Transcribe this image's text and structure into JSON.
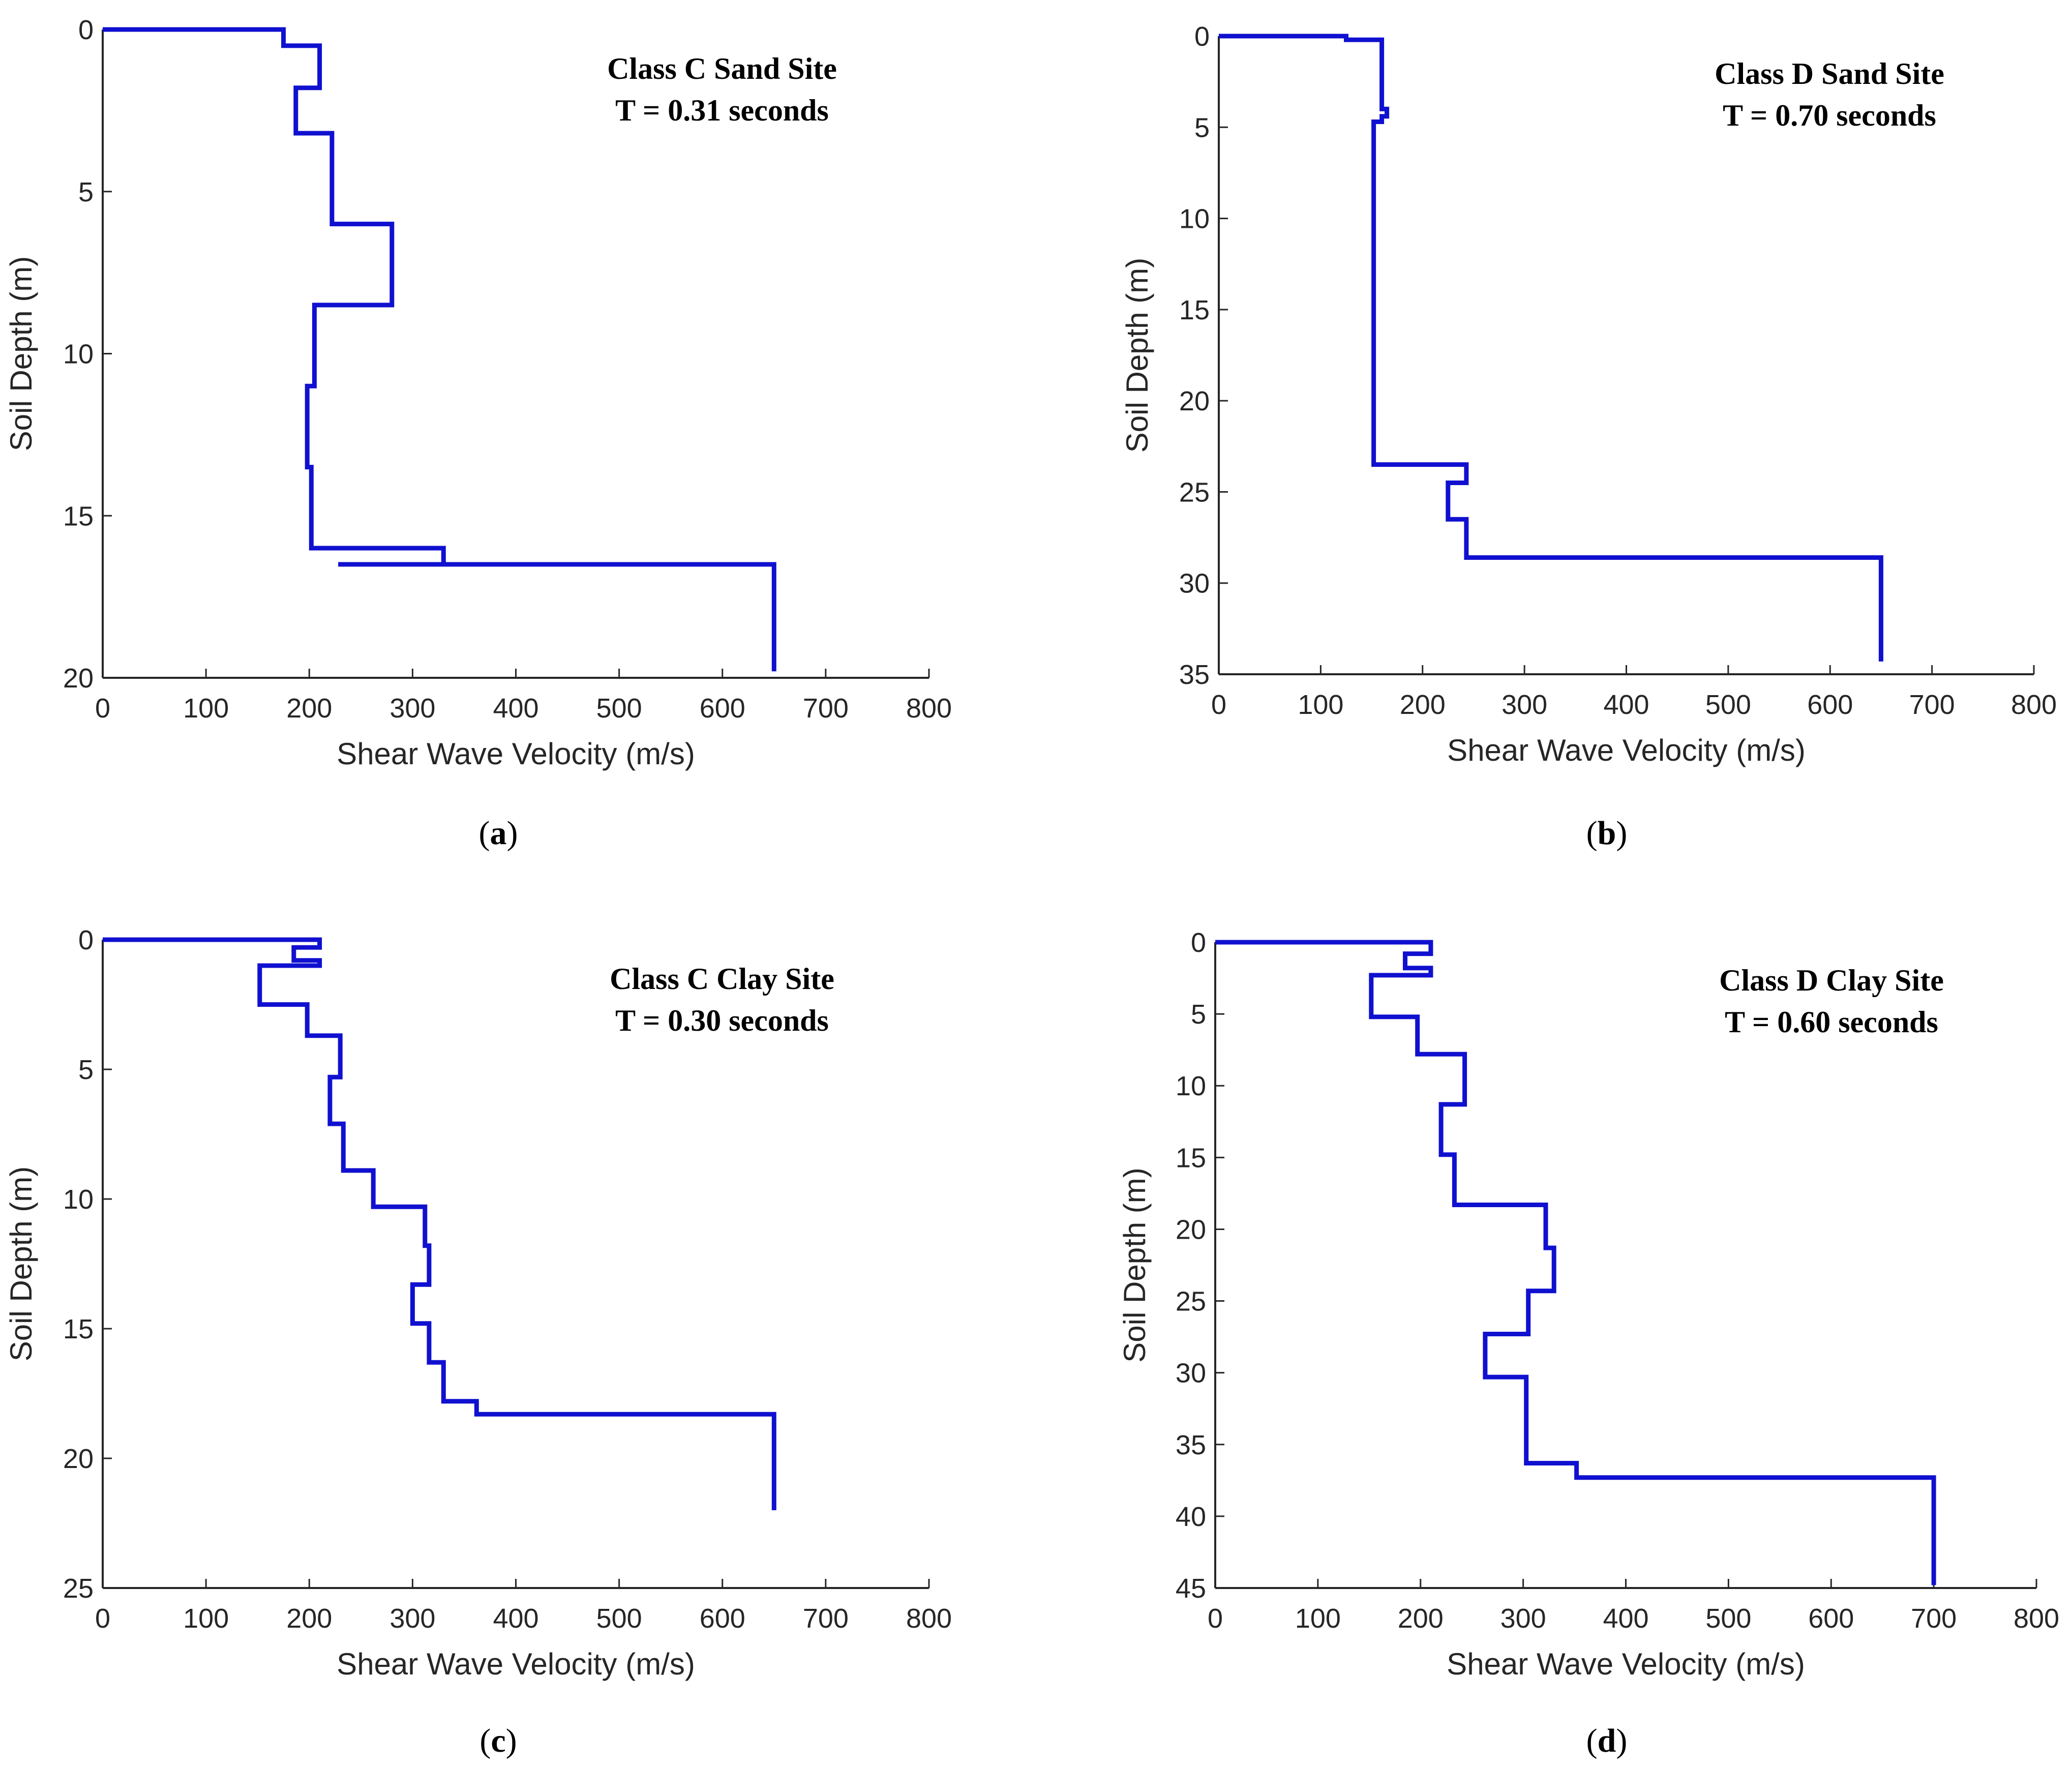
{
  "style": {
    "series_color": "#1010d0",
    "axis_color": "#262626"
  },
  "chart_data": [
    {
      "type": "line",
      "caption_letter": "a",
      "annotation": [
        "Class C Sand Site",
        "T = 0.31 seconds"
      ],
      "xlabel": "Shear Wave Velocity (m/s)",
      "ylabel": "Soil Depth (m)",
      "xlim": [
        0,
        800
      ],
      "ylim": [
        0,
        20
      ],
      "y_reversed": true,
      "x_ticks": [
        "0",
        "100",
        "200",
        "300",
        "400",
        "500",
        "600",
        "700",
        "800"
      ],
      "y_ticks": [
        "0",
        "5",
        "10",
        "15",
        "20"
      ],
      "grid": false,
      "series": [
        {
          "points": [
            [
              0,
              0
            ],
            [
              175,
              0
            ],
            [
              175,
              0.5
            ],
            [
              210,
              0.5
            ],
            [
              210,
              1.8
            ],
            [
              187,
              1.8
            ],
            [
              187,
              3.2
            ],
            [
              222,
              3.2
            ],
            [
              222,
              6
            ],
            [
              280,
              6
            ],
            [
              280,
              8.5
            ],
            [
              205,
              8.5
            ],
            [
              205,
              11
            ],
            [
              198,
              11
            ],
            [
              198,
              13.5
            ],
            [
              202,
              13.5
            ],
            [
              202,
              16
            ],
            [
              330,
              16
            ],
            [
              330,
              16.5
            ],
            [
              228,
              16.5
            ],
            [
              650,
              16.5
            ],
            [
              650,
              19.8
            ]
          ]
        }
      ]
    },
    {
      "type": "line",
      "caption_letter": "b",
      "annotation": [
        "Class D Sand Site",
        "T = 0.70 seconds"
      ],
      "xlabel": "Shear Wave Velocity (m/s)",
      "ylabel": "Soil Depth (m)",
      "xlim": [
        0,
        800
      ],
      "ylim": [
        0,
        35
      ],
      "y_reversed": true,
      "x_ticks": [
        "0",
        "100",
        "200",
        "300",
        "400",
        "500",
        "600",
        "700",
        "800"
      ],
      "y_ticks": [
        "0",
        "5",
        "10",
        "15",
        "20",
        "25",
        "30",
        "35"
      ],
      "grid": false,
      "series": [
        {
          "points": [
            [
              0,
              0
            ],
            [
              125,
              0
            ],
            [
              125,
              0.2
            ],
            [
              160,
              0.2
            ],
            [
              160,
              4
            ],
            [
              165,
              4
            ],
            [
              165,
              4.4
            ],
            [
              160,
              4.4
            ],
            [
              160,
              4.7
            ],
            [
              152,
              4.7
            ],
            [
              152,
              23.5
            ],
            [
              243,
              23.5
            ],
            [
              243,
              24.5
            ],
            [
              225,
              24.5
            ],
            [
              225,
              26.5
            ],
            [
              243,
              26.5
            ],
            [
              243,
              28.6
            ],
            [
              650,
              28.6
            ],
            [
              650,
              34.3
            ]
          ]
        }
      ]
    },
    {
      "type": "line",
      "caption_letter": "c",
      "annotation": [
        "Class C Clay Site",
        "T = 0.30 seconds"
      ],
      "xlabel": "Shear Wave Velocity (m/s)",
      "ylabel": "Soil Depth (m)",
      "xlim": [
        0,
        800
      ],
      "ylim": [
        0,
        25
      ],
      "y_reversed": true,
      "x_ticks": [
        "0",
        "100",
        "200",
        "300",
        "400",
        "500",
        "600",
        "700",
        "800"
      ],
      "y_ticks": [
        "0",
        "5",
        "10",
        "15",
        "20",
        "25"
      ],
      "grid": false,
      "series": [
        {
          "points": [
            [
              0,
              0
            ],
            [
              210,
              0
            ],
            [
              210,
              0.3
            ],
            [
              185,
              0.3
            ],
            [
              185,
              0.8
            ],
            [
              210,
              0.8
            ],
            [
              210,
              1
            ],
            [
              152,
              1
            ],
            [
              152,
              2.5
            ],
            [
              198,
              2.5
            ],
            [
              198,
              3.7
            ],
            [
              230,
              3.7
            ],
            [
              230,
              5.3
            ],
            [
              220,
              5.3
            ],
            [
              220,
              7.1
            ],
            [
              233,
              7.1
            ],
            [
              233,
              8.9
            ],
            [
              262,
              8.9
            ],
            [
              262,
              10.3
            ],
            [
              312,
              10.3
            ],
            [
              312,
              11.8
            ],
            [
              316,
              11.8
            ],
            [
              316,
              13.3
            ],
            [
              300,
              13.3
            ],
            [
              300,
              14.8
            ],
            [
              316,
              14.8
            ],
            [
              316,
              16.3
            ],
            [
              330,
              16.3
            ],
            [
              330,
              17.8
            ],
            [
              362,
              17.8
            ],
            [
              362,
              18.3
            ],
            [
              650,
              18.3
            ],
            [
              650,
              22
            ]
          ]
        }
      ]
    },
    {
      "type": "line",
      "caption_letter": "d",
      "annotation": [
        "Class D Clay Site",
        "T = 0.60 seconds"
      ],
      "xlabel": "Shear Wave Velocity (m/s)",
      "ylabel": "Soil Depth (m)",
      "xlim": [
        0,
        800
      ],
      "ylim": [
        0,
        45
      ],
      "y_reversed": true,
      "x_ticks": [
        "0",
        "100",
        "200",
        "300",
        "400",
        "500",
        "600",
        "700",
        "800"
      ],
      "y_ticks": [
        "0",
        "5",
        "10",
        "15",
        "20",
        "25",
        "30",
        "35",
        "40",
        "45"
      ],
      "grid": false,
      "series": [
        {
          "points": [
            [
              0,
              0
            ],
            [
              210,
              0
            ],
            [
              210,
              0.8
            ],
            [
              185,
              0.8
            ],
            [
              185,
              1.8
            ],
            [
              210,
              1.8
            ],
            [
              210,
              2.3
            ],
            [
              152,
              2.3
            ],
            [
              152,
              5.2
            ],
            [
              197,
              5.2
            ],
            [
              197,
              7.8
            ],
            [
              243,
              7.8
            ],
            [
              243,
              11.3
            ],
            [
              220,
              11.3
            ],
            [
              220,
              14.8
            ],
            [
              233,
              14.8
            ],
            [
              233,
              18.3
            ],
            [
              322,
              18.3
            ],
            [
              322,
              21.3
            ],
            [
              330,
              21.3
            ],
            [
              330,
              24.3
            ],
            [
              305,
              24.3
            ],
            [
              305,
              27.3
            ],
            [
              263,
              27.3
            ],
            [
              263,
              30.3
            ],
            [
              303,
              30.3
            ],
            [
              303,
              36.3
            ],
            [
              352,
              36.3
            ],
            [
              352,
              37.3
            ],
            [
              700,
              37.3
            ],
            [
              700,
              44.8
            ]
          ]
        }
      ]
    }
  ]
}
